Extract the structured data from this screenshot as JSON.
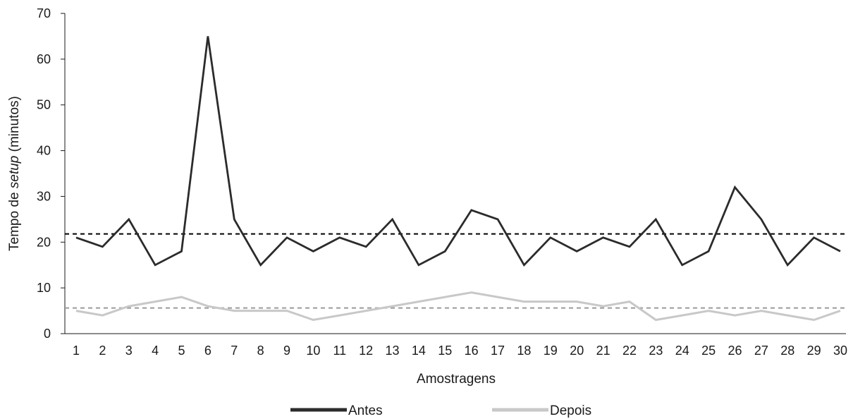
{
  "chart_data": {
    "type": "line",
    "xlabel": "Amostragens",
    "ylabel": {
      "prefix": "Tempo de ",
      "italic": "setup",
      "suffix": " (minutos)"
    },
    "ylim": [
      0,
      70
    ],
    "yticks": [
      "0",
      "10",
      "20",
      "30",
      "40",
      "50",
      "60",
      "70"
    ],
    "x": [
      1,
      2,
      3,
      4,
      5,
      6,
      7,
      8,
      9,
      10,
      11,
      12,
      13,
      14,
      15,
      16,
      17,
      18,
      19,
      20,
      21,
      22,
      23,
      24,
      25,
      26,
      27,
      28,
      29,
      30
    ],
    "series": [
      {
        "name": "Antes",
        "color": "#2b2b2b",
        "values": [
          21,
          19,
          25,
          15,
          18,
          65,
          25,
          15,
          21,
          18,
          21,
          19,
          25,
          15,
          18,
          27,
          25,
          15,
          21,
          18,
          21,
          19,
          25,
          15,
          18,
          32,
          25,
          15,
          21,
          18
        ],
        "mean": 21.8
      },
      {
        "name": "Depois",
        "color": "#c8c8c8",
        "values": [
          5,
          4,
          6,
          7,
          8,
          6,
          5,
          5,
          5,
          3,
          4,
          5,
          6,
          7,
          8,
          9,
          8,
          7,
          7,
          7,
          6,
          7,
          3,
          4,
          5,
          4,
          5,
          4,
          3,
          5
        ],
        "mean": 5.6
      }
    ],
    "reference_lines": [
      {
        "series": "Antes",
        "value": 21.8,
        "style": "dashed",
        "color": "#000000"
      },
      {
        "series": "Depois",
        "value": 5.6,
        "style": "dashed",
        "color": "#9a9a9a"
      }
    ],
    "legend": {
      "position": "bottom-center"
    },
    "grid": false
  }
}
